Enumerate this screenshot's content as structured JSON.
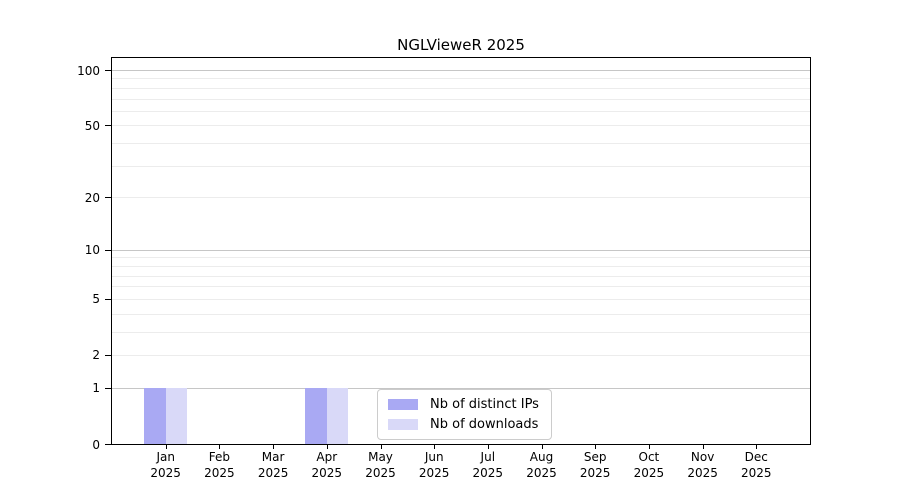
{
  "chart_data": {
    "type": "bar",
    "title": "NGLVieweR 2025",
    "categories": [
      "Jan",
      "Feb",
      "Mar",
      "Apr",
      "May",
      "Jun",
      "Jul",
      "Aug",
      "Sep",
      "Oct",
      "Nov",
      "Dec"
    ],
    "year": "2025",
    "series": [
      {
        "name": "Nb of distinct IPs",
        "color": "#a9a9f3",
        "values": [
          1,
          0,
          0,
          1,
          0,
          0,
          0,
          0,
          0,
          0,
          0,
          0
        ]
      },
      {
        "name": "Nb of downloads",
        "color": "#d9d9f8",
        "values": [
          1,
          0,
          0,
          1,
          0,
          0,
          0,
          0,
          0,
          0,
          0,
          0
        ]
      }
    ],
    "y_axis": {
      "scale": "log1p",
      "ticks": [
        0,
        1,
        2,
        5,
        10,
        20,
        50,
        100
      ],
      "range": [
        0,
        116
      ]
    },
    "grid": {
      "major": [
        1,
        10,
        100
      ],
      "minor": [
        2,
        3,
        4,
        5,
        6,
        7,
        8,
        9,
        20,
        30,
        40,
        50,
        60,
        70,
        80,
        90
      ]
    },
    "legend_position": "bottom-center-inside",
    "colors": {
      "axis": "#000000",
      "grid_major": "#c6c6c6",
      "grid_minor": "#ececec",
      "legend_border": "#cccccc",
      "background": "#ffffff"
    }
  }
}
